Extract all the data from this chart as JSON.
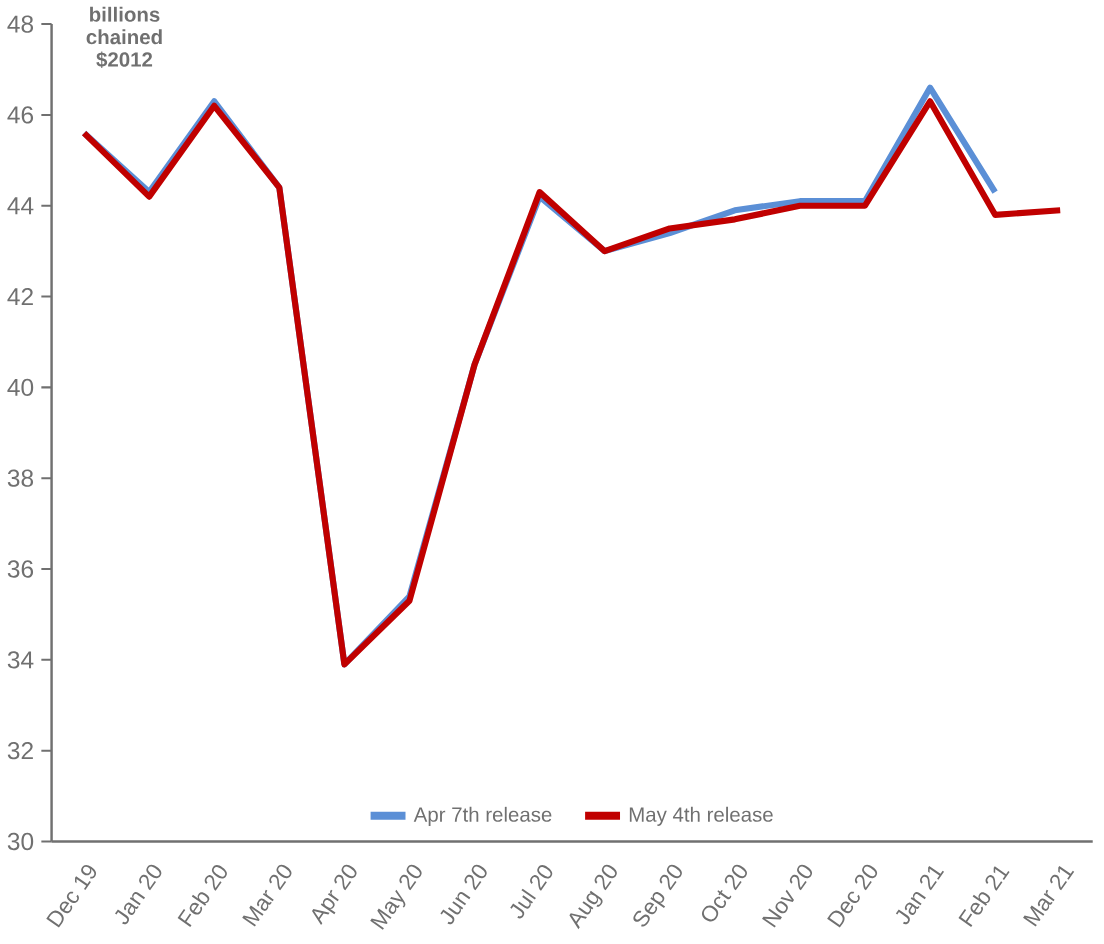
{
  "chart_data": {
    "type": "line",
    "annotations": [
      "billions chained $2012"
    ],
    "categories": [
      "Dec 19",
      "Jan 20",
      "Feb 20",
      "Mar 20",
      "Apr 20",
      "May 20",
      "Jun 20",
      "Jul 20",
      "Aug 20",
      "Sep 20",
      "Oct 20",
      "Nov 20",
      "Dec 20",
      "Jan 21",
      "Feb 21",
      "Mar 21"
    ],
    "series": [
      {
        "name": "Apr 7th release",
        "color": "#5b8fd6",
        "values": [
          45.6,
          44.3,
          46.3,
          44.4,
          33.9,
          35.4,
          40.5,
          44.2,
          43.0,
          43.4,
          43.9,
          44.1,
          44.1,
          46.6,
          44.3,
          null
        ]
      },
      {
        "name": "May 4th release",
        "color": "#c00000",
        "values": [
          45.6,
          44.2,
          46.2,
          44.4,
          33.9,
          35.3,
          40.5,
          44.3,
          43.0,
          43.5,
          43.7,
          44.0,
          44.0,
          46.3,
          43.8,
          43.9
        ]
      }
    ],
    "ylim": [
      30,
      48
    ],
    "yticks": [
      30,
      32,
      34,
      36,
      38,
      40,
      42,
      44,
      46,
      48
    ],
    "grid": false,
    "legend": "bottom",
    "marker": "none",
    "line_style": "solid"
  }
}
